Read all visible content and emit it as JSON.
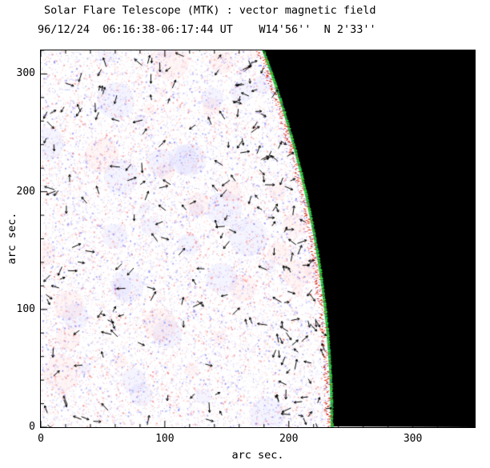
{
  "chart_data": {
    "type": "heatmap",
    "title": "Solar Flare Telescope (MTK) : vector magnetic field",
    "subtitle": "96/12/24  06:16:38-06:17:44 UT    W14'56''  N 2'33''",
    "xlabel": "arc sec.",
    "ylabel": "arc sec.",
    "xlim": [
      0,
      350
    ],
    "ylim": [
      0,
      320
    ],
    "xticks": [
      0,
      100,
      200,
      300
    ],
    "yticks": [
      0,
      100,
      200,
      300
    ],
    "minor_tick_interval": 20,
    "description": "Vector magnetogram of the solar west limb: speckled red/blue noise over the solar disk, black off-limb sky to the right of the curved limb, a green/red irregular limb edge, and small black arrows showing transverse magnetic field vectors.",
    "limb_circle_arcsec": {
      "cx": -720,
      "cy": 0,
      "r": 955
    },
    "colors": {
      "disk_base": "#ffffff",
      "noise_red": "#ff8888",
      "noise_blue": "#8888ff",
      "noise_light_red": "#ffcccc",
      "noise_light_blue": "#ccccff",
      "noise_deep_red": "#ee4444",
      "noise_deep_blue": "#4444ee",
      "off_limb": "#000000",
      "limb_green": "#22aa44",
      "limb_red": "#dd2200",
      "arrow": "#000000",
      "frame": "#000000"
    },
    "arrow_count": 230,
    "noise_dots": 30000
  }
}
